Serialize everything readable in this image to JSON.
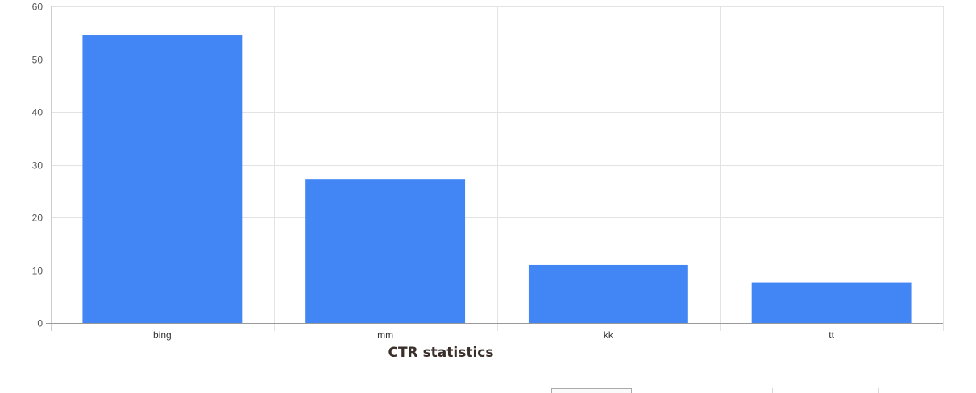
{
  "chart_data": {
    "type": "bar",
    "title": "CTR statistics",
    "xlabel": "",
    "ylabel": "",
    "categories": [
      "bing",
      "mm",
      "kk",
      "tt"
    ],
    "values": [
      54.5,
      27.3,
      11.0,
      7.7
    ],
    "ylim": [
      0,
      60
    ],
    "yticks": [
      0,
      10,
      20,
      30,
      40,
      50,
      60
    ],
    "grid": true,
    "legend": "none",
    "bar_color": "#4285f4",
    "grid_color": "#e3e3e3",
    "axis_color": "#999999"
  }
}
